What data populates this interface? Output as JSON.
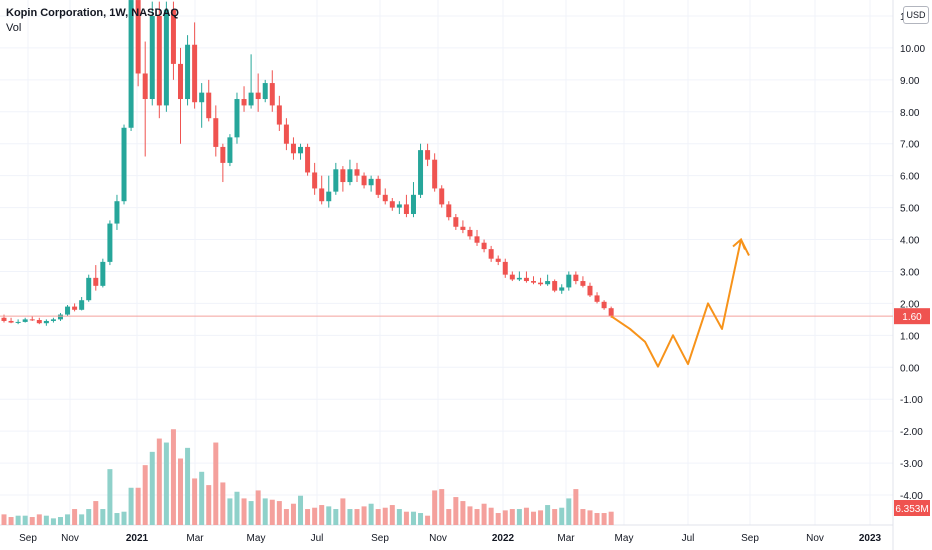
{
  "header": {
    "title": "Kopin Corporation, 1W, NASDAQ",
    "volume_label": "Vol"
  },
  "currency_label": "USD",
  "price_badge": {
    "value": "1.60",
    "color": "#ef5350"
  },
  "volume_badge": {
    "value": "6.353M",
    "color": "#ef5350"
  },
  "colors": {
    "up": "#26a69a",
    "down": "#ef5350",
    "vol_up": "#8fd1ca",
    "vol_down": "#f4a09c",
    "projection": "#f7931a",
    "grid": "#f0f3fa"
  },
  "chart_data": {
    "type": "candlestick",
    "title": "Kopin Corporation, 1W, NASDAQ",
    "y_ticks": [
      "-4.00",
      "-3.00",
      "-2.00",
      "-1.00",
      "0.00",
      "1.00",
      "2.00",
      "3.00",
      "4.00",
      "5.00",
      "6.00",
      "7.00",
      "8.00",
      "9.00",
      "10.00",
      "11.00"
    ],
    "x_ticks": [
      "Sep",
      "Nov",
      "2021",
      "Mar",
      "May",
      "Jul",
      "Sep",
      "Nov",
      "2022",
      "Mar",
      "May",
      "Jul",
      "Sep",
      "Nov",
      "2023"
    ],
    "ylim": [
      -4.4,
      11.4
    ],
    "last_price": 1.6,
    "candles": [
      [
        1.55,
        1.65,
        1.4,
        1.45
      ],
      [
        1.45,
        1.55,
        1.38,
        1.4
      ],
      [
        1.4,
        1.5,
        1.35,
        1.42
      ],
      [
        1.42,
        1.55,
        1.4,
        1.5
      ],
      [
        1.5,
        1.6,
        1.45,
        1.48
      ],
      [
        1.48,
        1.55,
        1.35,
        1.38
      ],
      [
        1.38,
        1.5,
        1.3,
        1.45
      ],
      [
        1.45,
        1.55,
        1.4,
        1.5
      ],
      [
        1.5,
        1.7,
        1.45,
        1.65
      ],
      [
        1.65,
        1.95,
        1.6,
        1.9
      ],
      [
        1.9,
        2.0,
        1.75,
        1.8
      ],
      [
        1.8,
        2.2,
        1.78,
        2.1
      ],
      [
        2.1,
        2.9,
        2.05,
        2.8
      ],
      [
        2.8,
        3.2,
        2.4,
        2.55
      ],
      [
        2.55,
        3.4,
        2.5,
        3.3
      ],
      [
        3.3,
        4.6,
        3.2,
        4.5
      ],
      [
        4.5,
        5.4,
        4.3,
        5.2
      ],
      [
        5.2,
        7.6,
        5.1,
        7.5
      ],
      [
        7.5,
        12.0,
        7.4,
        11.5
      ],
      [
        11.5,
        13.0,
        8.8,
        9.2
      ],
      [
        9.2,
        10.2,
        6.6,
        8.4
      ],
      [
        8.4,
        11.5,
        8.2,
        11.0
      ],
      [
        11.0,
        12.5,
        7.8,
        8.2
      ],
      [
        8.2,
        11.8,
        8.0,
        11.2
      ],
      [
        11.2,
        11.5,
        9.0,
        9.5
      ],
      [
        9.5,
        10.0,
        7.0,
        8.4
      ],
      [
        8.4,
        10.4,
        8.2,
        10.1
      ],
      [
        10.1,
        10.8,
        8.1,
        8.3
      ],
      [
        8.3,
        8.9,
        7.5,
        8.6
      ],
      [
        8.6,
        9.0,
        7.7,
        7.8
      ],
      [
        7.8,
        8.2,
        6.6,
        6.9
      ],
      [
        6.9,
        7.0,
        5.8,
        6.4
      ],
      [
        6.4,
        7.3,
        6.3,
        7.2
      ],
      [
        7.2,
        8.6,
        7.0,
        8.4
      ],
      [
        8.4,
        8.8,
        8.0,
        8.2
      ],
      [
        8.2,
        9.8,
        8.1,
        8.6
      ],
      [
        8.6,
        9.2,
        8.0,
        8.4
      ],
      [
        8.4,
        9.0,
        8.3,
        8.9
      ],
      [
        8.9,
        9.3,
        8.0,
        8.2
      ],
      [
        8.2,
        8.5,
        7.4,
        7.6
      ],
      [
        7.6,
        7.8,
        6.8,
        7.0
      ],
      [
        7.0,
        7.2,
        6.5,
        6.7
      ],
      [
        6.7,
        7.0,
        6.5,
        6.9
      ],
      [
        6.9,
        7.0,
        6.0,
        6.1
      ],
      [
        6.1,
        6.4,
        5.4,
        5.6
      ],
      [
        5.6,
        6.0,
        5.1,
        5.2
      ],
      [
        5.2,
        6.0,
        5.0,
        5.5
      ],
      [
        5.5,
        6.4,
        5.4,
        6.2
      ],
      [
        6.2,
        6.3,
        5.5,
        5.8
      ],
      [
        5.8,
        6.5,
        5.7,
        6.2
      ],
      [
        6.2,
        6.4,
        5.8,
        6.0
      ],
      [
        6.0,
        6.1,
        5.6,
        5.7
      ],
      [
        5.7,
        6.0,
        5.5,
        5.9
      ],
      [
        5.9,
        6.0,
        5.3,
        5.4
      ],
      [
        5.4,
        5.6,
        5.1,
        5.2
      ],
      [
        5.2,
        5.3,
        4.9,
        5.0
      ],
      [
        5.0,
        5.2,
        4.8,
        5.1
      ],
      [
        5.1,
        5.4,
        4.7,
        4.8
      ],
      [
        4.8,
        5.8,
        4.7,
        5.4
      ],
      [
        5.4,
        7.0,
        5.3,
        6.8
      ],
      [
        6.8,
        7.0,
        6.3,
        6.5
      ],
      [
        6.5,
        6.7,
        5.5,
        5.6
      ],
      [
        5.6,
        5.7,
        5.0,
        5.1
      ],
      [
        5.1,
        5.2,
        4.6,
        4.7
      ],
      [
        4.7,
        4.8,
        4.3,
        4.4
      ],
      [
        4.4,
        4.6,
        4.2,
        4.3
      ],
      [
        4.3,
        4.4,
        4.0,
        4.1
      ],
      [
        4.1,
        4.3,
        3.8,
        3.9
      ],
      [
        3.9,
        4.0,
        3.6,
        3.7
      ],
      [
        3.7,
        3.8,
        3.3,
        3.4
      ],
      [
        3.4,
        3.5,
        3.2,
        3.3
      ],
      [
        3.3,
        3.4,
        2.8,
        2.9
      ],
      [
        2.9,
        3.0,
        2.7,
        2.75
      ],
      [
        2.75,
        3.0,
        2.7,
        2.8
      ],
      [
        2.8,
        3.0,
        2.65,
        2.7
      ],
      [
        2.7,
        2.85,
        2.6,
        2.65
      ],
      [
        2.65,
        2.8,
        2.55,
        2.6
      ],
      [
        2.6,
        2.9,
        2.55,
        2.7
      ],
      [
        2.7,
        2.75,
        2.35,
        2.4
      ],
      [
        2.4,
        2.6,
        2.3,
        2.5
      ],
      [
        2.5,
        3.0,
        2.4,
        2.9
      ],
      [
        2.9,
        3.0,
        2.6,
        2.7
      ],
      [
        2.7,
        2.85,
        2.5,
        2.55
      ],
      [
        2.55,
        2.65,
        2.2,
        2.25
      ],
      [
        2.25,
        2.35,
        2.0,
        2.05
      ],
      [
        2.05,
        2.1,
        1.8,
        1.85
      ],
      [
        1.85,
        1.9,
        1.55,
        1.6
      ]
    ],
    "volume_scale": [
      0,
      1
    ],
    "volumes": [
      0.08,
      0.06,
      0.07,
      0.07,
      0.06,
      0.08,
      0.07,
      0.05,
      0.06,
      0.08,
      0.12,
      0.08,
      0.12,
      0.18,
      0.12,
      0.42,
      0.09,
      0.1,
      0.28,
      0.28,
      0.45,
      0.55,
      0.65,
      0.62,
      0.72,
      0.5,
      0.58,
      0.35,
      0.4,
      0.3,
      0.62,
      0.32,
      0.2,
      0.25,
      0.2,
      0.18,
      0.26,
      0.2,
      0.19,
      0.18,
      0.12,
      0.16,
      0.22,
      0.12,
      0.13,
      0.15,
      0.14,
      0.12,
      0.2,
      0.12,
      0.12,
      0.14,
      0.16,
      0.12,
      0.13,
      0.15,
      0.12,
      0.1,
      0.1,
      0.09,
      0.07,
      0.26,
      0.27,
      0.12,
      0.21,
      0.18,
      0.14,
      0.12,
      0.16,
      0.13,
      0.09,
      0.11,
      0.12,
      0.12,
      0.13,
      0.1,
      0.11,
      0.15,
      0.12,
      0.13,
      0.2,
      0.27,
      0.12,
      0.11,
      0.09,
      0.09,
      0.1
    ],
    "projection": [
      [
        1.6,
        0.6
      ],
      [
        1.2,
        -0.55
      ],
      [
        0.8,
        -0.1
      ],
      [
        0.02,
        -0.55
      ],
      [
        1.0,
        -0.1
      ],
      [
        0.1,
        -0.55
      ],
      [
        2.0,
        -0.1
      ],
      [
        1.2,
        -0.55
      ],
      [
        4.0,
        -0.1
      ],
      [
        3.5,
        -0.55
      ]
    ]
  }
}
